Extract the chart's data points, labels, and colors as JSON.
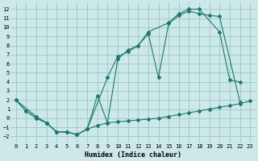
{
  "xlabel": "Humidex (Indice chaleur)",
  "bg_color": "#cce8e8",
  "grid_color": "#9fc4c4",
  "line_color": "#1a7a6e",
  "xlim": [
    -0.5,
    23.5
  ],
  "ylim": [
    -2.7,
    12.7
  ],
  "xticks": [
    0,
    1,
    2,
    3,
    4,
    5,
    6,
    7,
    8,
    9,
    10,
    11,
    12,
    13,
    14,
    15,
    16,
    17,
    18,
    19,
    20,
    21,
    22,
    23
  ],
  "yticks": [
    -2,
    -1,
    0,
    1,
    2,
    3,
    4,
    5,
    6,
    7,
    8,
    9,
    10,
    11,
    12
  ],
  "line1_x": [
    0,
    1,
    2,
    3,
    4,
    5,
    6,
    7,
    9,
    10,
    11,
    12,
    13,
    14,
    15,
    16,
    17,
    18,
    19,
    20,
    22
  ],
  "line1_y": [
    2.0,
    0.8,
    0.0,
    -0.5,
    -1.5,
    -1.5,
    -1.8,
    -1.2,
    4.5,
    6.8,
    7.3,
    8.0,
    9.3,
    4.5,
    10.4,
    11.3,
    11.8,
    11.5,
    11.3,
    11.2,
    1.8
  ],
  "line2_x": [
    0,
    2,
    3,
    4,
    5,
    6,
    7,
    8,
    9,
    10,
    11,
    12,
    13,
    15,
    16,
    17,
    18,
    20,
    21,
    22
  ],
  "line2_y": [
    2.0,
    0.2,
    -0.5,
    -1.5,
    -1.5,
    -1.8,
    -1.2,
    2.5,
    -0.5,
    6.5,
    7.5,
    8.0,
    9.5,
    10.5,
    11.5,
    12.0,
    12.0,
    9.5,
    4.2,
    4.0
  ],
  "line3_x": [
    0,
    1,
    2,
    3,
    4,
    5,
    6,
    7,
    8,
    9,
    10,
    11,
    12,
    13,
    14,
    15,
    16,
    17,
    18,
    19,
    20,
    21,
    22,
    23
  ],
  "line3_y": [
    2.0,
    0.8,
    0.0,
    -0.5,
    -1.5,
    -1.5,
    -1.8,
    -1.2,
    -0.8,
    -0.5,
    -0.4,
    -0.3,
    -0.2,
    -0.1,
    0.0,
    0.2,
    0.4,
    0.6,
    0.8,
    1.0,
    1.2,
    1.4,
    1.6,
    1.9
  ]
}
